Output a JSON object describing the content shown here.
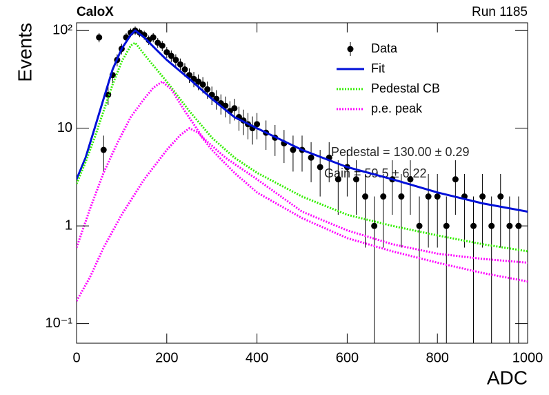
{
  "chart_data": {
    "type": "errorbar",
    "title": "CaloX",
    "subtitle": "Run 1185",
    "x_label": "ADC",
    "y_label": "Events",
    "log_y": true,
    "legend": "upper right",
    "xlim": [
      0,
      1000
    ],
    "ylim": [
      0.063,
      120
    ],
    "xticks": [
      0,
      200,
      400,
      600,
      800,
      1000
    ],
    "yticks": [
      {
        "value": 0.1,
        "label": "10⁻¹"
      },
      1,
      10,
      {
        "value": 100,
        "label": "10²"
      }
    ],
    "annotations": [
      "Pedestal = 130.00 ± 0.29",
      "Gain = 59.5 ± 6.22"
    ],
    "series": [
      {
        "name": "Data",
        "type": "errorbar",
        "color": "#000000",
        "x": [
          50,
          60,
          70,
          80,
          90,
          100,
          110,
          120,
          130,
          140,
          150,
          160,
          170,
          180,
          190,
          200,
          210,
          220,
          230,
          240,
          250,
          260,
          270,
          280,
          290,
          300,
          310,
          320,
          330,
          340,
          350,
          360,
          370,
          380,
          390,
          400,
          420,
          440,
          460,
          480,
          500,
          520,
          540,
          560,
          580,
          600,
          620,
          640,
          660,
          680,
          700,
          720,
          740,
          760,
          780,
          800,
          820,
          840,
          860,
          880,
          900,
          920,
          940,
          960,
          980
        ],
        "values": [
          85,
          6,
          22,
          35,
          50,
          65,
          85,
          95,
          100,
          95,
          90,
          80,
          85,
          75,
          70,
          60,
          55,
          50,
          45,
          40,
          35,
          32,
          30,
          28,
          25,
          22,
          20,
          18,
          17,
          15,
          16,
          13,
          12,
          11,
          10,
          11,
          9,
          8,
          7,
          6,
          6,
          5,
          4,
          5,
          3,
          4,
          3,
          2,
          1,
          2,
          3,
          2,
          3,
          1,
          2,
          2,
          1,
          3,
          2,
          1,
          2,
          1,
          2,
          1,
          1
        ],
        "errors": [
          9.2,
          2.4,
          4.7,
          5.9,
          7.1,
          8.1,
          9.2,
          9.7,
          10,
          9.7,
          9.5,
          8.9,
          9.2,
          8.7,
          8.4,
          7.7,
          7.4,
          7.1,
          6.7,
          6.3,
          5.9,
          5.7,
          5.5,
          5.3,
          5,
          4.7,
          4.5,
          4.2,
          4.1,
          3.9,
          4,
          3.6,
          3.5,
          3.3,
          3.2,
          3.3,
          3,
          2.8,
          2.6,
          2.4,
          2.4,
          2.2,
          2,
          2.2,
          1.7,
          2,
          1.7,
          1.4,
          1,
          1.4,
          1.7,
          1.4,
          1.7,
          1,
          1.4,
          1.4,
          1,
          1.7,
          1.4,
          1,
          1.4,
          1,
          1.4,
          1,
          1
        ]
      },
      {
        "name": "Fit",
        "type": "line",
        "style": "solid",
        "color": "#0010d8",
        "x": [
          0,
          20,
          40,
          60,
          80,
          100,
          120,
          130,
          150,
          175,
          200,
          250,
          300,
          350,
          400,
          500,
          600,
          700,
          800,
          900,
          1000
        ],
        "values": [
          3,
          5,
          10,
          20,
          40,
          65,
          90,
          100,
          85,
          65,
          50,
          32,
          20,
          13,
          10,
          6,
          4,
          3,
          2.2,
          1.7,
          1.4
        ]
      },
      {
        "name": "Pedestal CB",
        "type": "line",
        "style": "dotted",
        "color": "#33ee00",
        "x": [
          0,
          20,
          40,
          60,
          80,
          100,
          120,
          130,
          160,
          200,
          250,
          300,
          350,
          400,
          500,
          600,
          700,
          800,
          900,
          1000
        ],
        "values": [
          2.7,
          4.5,
          8,
          15,
          28,
          48,
          70,
          75,
          50,
          30,
          15,
          8,
          5,
          3.5,
          2,
          1.3,
          1,
          0.8,
          0.65,
          0.55
        ]
      },
      {
        "name": "p.e. peak",
        "type": "line",
        "style": "dotted",
        "color": "#ff00ff",
        "x": [
          0,
          30,
          60,
          90,
          120,
          150,
          170,
          190,
          210,
          240,
          280,
          330,
          400,
          500,
          600,
          700,
          800,
          900,
          1000,
          null,
          0,
          30,
          60,
          100,
          150,
          200,
          230,
          250,
          270,
          300,
          350,
          400,
          500,
          600,
          700,
          800,
          900,
          1000
        ],
        "values": [
          0.6,
          1.5,
          3.5,
          7,
          13,
          20,
          26,
          30,
          25,
          15,
          8,
          5,
          3,
          1.4,
          0.9,
          0.65,
          0.52,
          0.46,
          0.42,
          null,
          0.17,
          0.3,
          0.6,
          1.3,
          3,
          6,
          8.5,
          10,
          9,
          6,
          3.5,
          2.2,
          1.2,
          0.75,
          0.55,
          0.42,
          0.33,
          0.27
        ]
      }
    ]
  }
}
